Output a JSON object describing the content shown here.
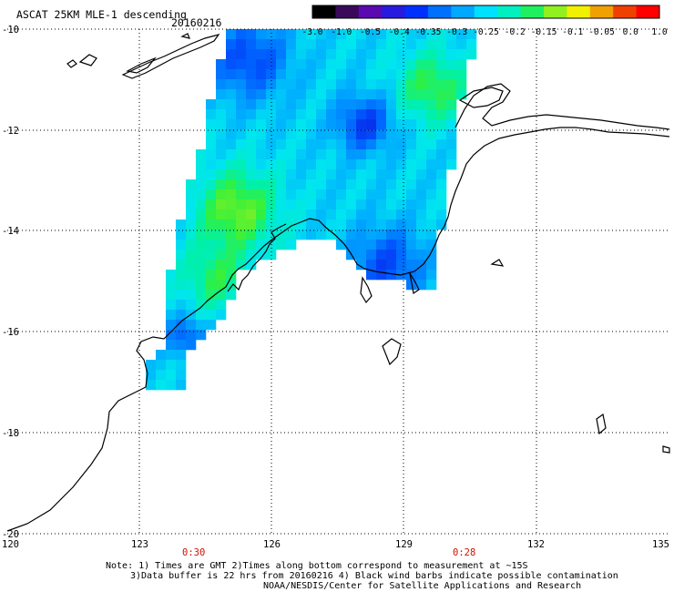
{
  "header": {
    "title": "ASCAT 25KM MLE-1 descending",
    "date": "20160216"
  },
  "colorbar": {
    "ticks": [
      "-3.0",
      "-1.0",
      "-0.5",
      "-0.4",
      "-0.35",
      "-0.3",
      "-0.25",
      "-0.2",
      "-0.15",
      "-0.1",
      "-0.05",
      "0.0",
      "1.0"
    ],
    "colors": [
      "#000000",
      "#3a0a5a",
      "#5a0ab0",
      "#2a1adf",
      "#0030ff",
      "#0070ff",
      "#00a8ff",
      "#00e0ff",
      "#00f0c0",
      "#20f060",
      "#90f020",
      "#f0f000",
      "#f0a000",
      "#f04000",
      "#ff0000"
    ]
  },
  "axes": {
    "lat_labels": [
      "-10",
      "-12",
      "-14",
      "-16",
      "-18",
      "-20"
    ],
    "lon_labels": [
      "120",
      "123",
      "126",
      "129",
      "132",
      "135"
    ]
  },
  "times": [
    "0:30",
    "0:28"
  ],
  "notes": {
    "line1": "Note: 1) Times are GMT 2)Times along bottom correspond to measurement at ~15S",
    "line2": "3)Data buffer is 22 hrs from 20160216 4) Black wind barbs indicate possible contamination",
    "line3": "NOAA/NESDIS/Center for Satellite Applications and Research"
  }
}
